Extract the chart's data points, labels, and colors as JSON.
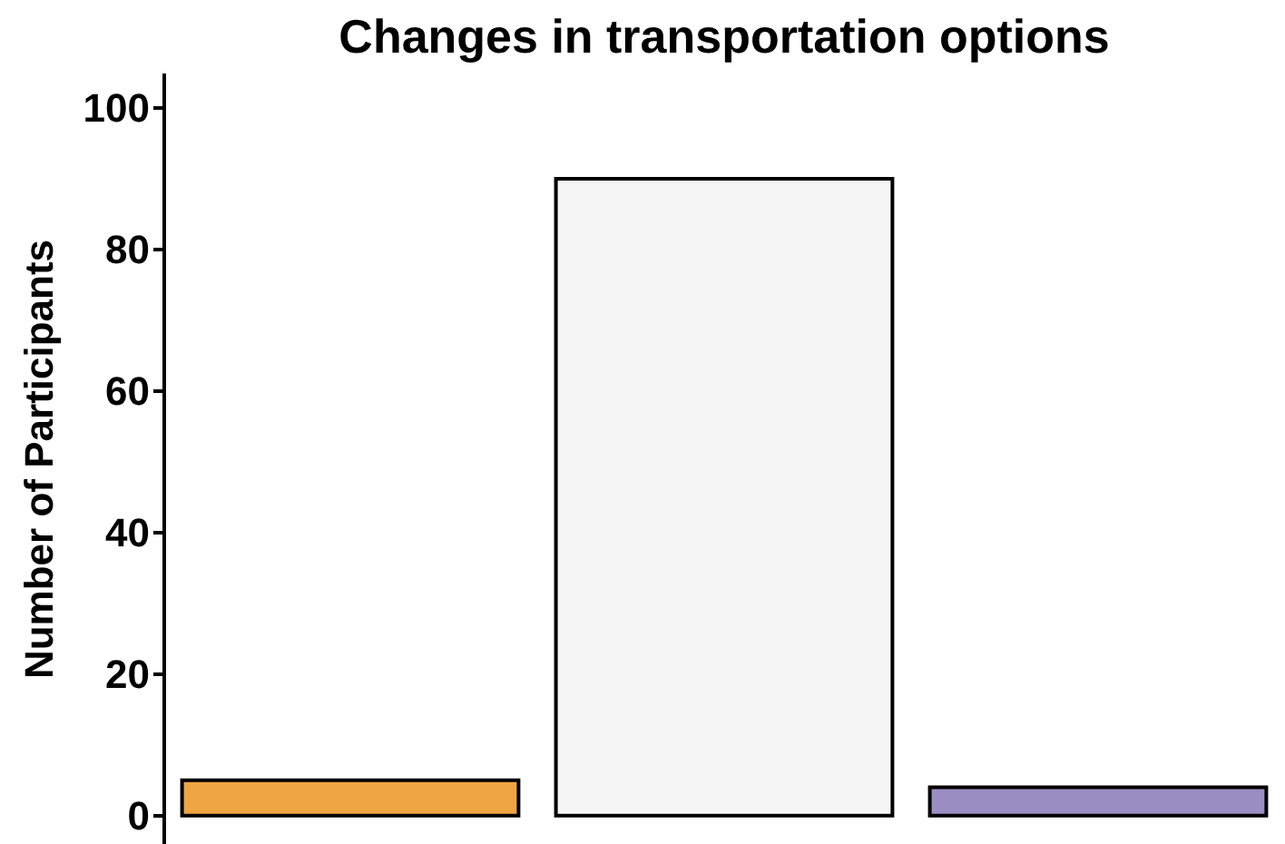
{
  "chart_data": {
    "type": "bar",
    "title": "Changes in transportation options",
    "ylabel": "Number of Participants",
    "categories": [
      null,
      null,
      null
    ],
    "values": [
      5,
      90,
      4
    ],
    "colors": [
      "#f0a543",
      "#f5f5f5",
      "#9a8ec2"
    ],
    "ylim": [
      -4,
      105
    ],
    "yticks": [
      0,
      20,
      40,
      60,
      80,
      100
    ]
  }
}
